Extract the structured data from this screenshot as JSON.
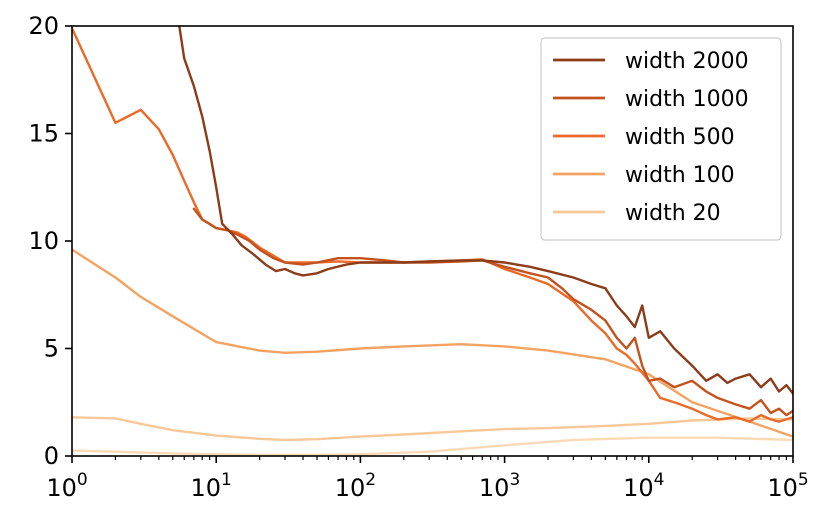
{
  "chart_data": {
    "type": "line",
    "xscale": "log",
    "xlim": [
      1,
      100000
    ],
    "ylim": [
      0,
      20
    ],
    "xticks": [
      {
        "value": 1,
        "base": "10",
        "exp": "0"
      },
      {
        "value": 10,
        "base": "10",
        "exp": "1"
      },
      {
        "value": 100,
        "base": "10",
        "exp": "2"
      },
      {
        "value": 1000,
        "base": "10",
        "exp": "3"
      },
      {
        "value": 10000,
        "base": "10",
        "exp": "4"
      },
      {
        "value": 100000,
        "base": "10",
        "exp": "5"
      }
    ],
    "yticks": [
      {
        "value": 0,
        "label": "0"
      },
      {
        "value": 5,
        "label": "5"
      },
      {
        "value": 10,
        "label": "10"
      },
      {
        "value": 15,
        "label": "15"
      },
      {
        "value": 20,
        "label": "20"
      }
    ],
    "grid": false,
    "legend_position": "top-right",
    "series": [
      {
        "name": "width 2000",
        "color": "#8c3c18",
        "x": [
          5,
          6,
          7,
          8,
          9,
          10,
          11,
          13,
          15,
          18,
          22,
          26,
          30,
          35,
          40,
          50,
          60,
          80,
          100,
          150,
          200,
          300,
          500,
          700,
          1000,
          1500,
          2000,
          3000,
          4000,
          5000,
          6000,
          7000,
          8000,
          9000,
          10000,
          12000,
          15000,
          20000,
          25000,
          30000,
          35000,
          40000,
          50000,
          60000,
          70000,
          80000,
          90000,
          100000
        ],
        "y": [
          22,
          18.5,
          17.2,
          15.8,
          14.2,
          12.5,
          10.8,
          10.3,
          9.8,
          9.4,
          8.9,
          8.6,
          8.7,
          8.5,
          8.4,
          8.5,
          8.7,
          8.9,
          9.0,
          9.0,
          9.0,
          9.05,
          9.1,
          9.1,
          9.0,
          8.8,
          8.6,
          8.3,
          8.0,
          7.8,
          7.0,
          6.5,
          6.0,
          7.0,
          5.5,
          5.8,
          5.0,
          4.2,
          3.5,
          3.8,
          3.4,
          3.6,
          3.8,
          3.2,
          3.6,
          3.0,
          3.3,
          2.9
        ]
      },
      {
        "name": "width 1000",
        "color": "#c4521d",
        "x": [
          7,
          8,
          10,
          12,
          14,
          17,
          20,
          25,
          30,
          40,
          50,
          70,
          100,
          150,
          200,
          300,
          500,
          700,
          1000,
          1500,
          2000,
          2500,
          3000,
          4000,
          5000,
          6000,
          7000,
          8000,
          9000,
          10000,
          12000,
          15000,
          20000,
          25000,
          30000,
          40000,
          50000,
          60000,
          70000,
          80000,
          90000,
          100000
        ],
        "y": [
          11.5,
          11.0,
          10.6,
          10.5,
          10.3,
          10.0,
          9.6,
          9.2,
          9.0,
          8.9,
          9.0,
          9.2,
          9.2,
          9.1,
          9.0,
          9.0,
          9.05,
          9.1,
          8.8,
          8.5,
          8.3,
          7.8,
          7.3,
          6.8,
          6.3,
          5.5,
          5.0,
          5.5,
          4.2,
          3.5,
          3.6,
          3.2,
          3.5,
          3.0,
          2.7,
          2.4,
          2.2,
          2.6,
          2.0,
          2.2,
          1.9,
          2.1
        ]
      },
      {
        "name": "width 500",
        "color": "#eb6a28",
        "x": [
          1,
          2,
          3,
          4,
          5,
          6,
          7,
          8,
          9,
          10,
          12,
          14,
          16,
          20,
          30,
          50,
          70,
          100,
          200,
          300,
          500,
          700,
          1000,
          1500,
          2000,
          3000,
          4000,
          5000,
          6000,
          7000,
          8000,
          10000,
          12000,
          15000,
          20000,
          25000,
          30000,
          40000,
          50000,
          60000,
          70000,
          80000,
          100000
        ],
        "y": [
          19.9,
          15.5,
          16.1,
          15.2,
          14.0,
          12.8,
          11.8,
          11.0,
          10.8,
          10.6,
          10.5,
          10.4,
          10.2,
          9.7,
          9.0,
          9.0,
          9.05,
          9.0,
          9.0,
          9.05,
          9.1,
          9.15,
          8.7,
          8.3,
          8.0,
          7.2,
          6.3,
          5.7,
          5.0,
          4.7,
          4.3,
          3.5,
          2.7,
          2.5,
          2.2,
          1.9,
          1.7,
          1.8,
          1.6,
          1.9,
          1.7,
          1.6,
          1.8
        ]
      },
      {
        "name": "width 100",
        "color": "#f4a261",
        "x": [
          1,
          2,
          3,
          5,
          10,
          20,
          30,
          50,
          100,
          200,
          500,
          1000,
          2000,
          5000,
          10000,
          20000,
          50000,
          100000
        ],
        "y": [
          9.6,
          8.3,
          7.4,
          6.5,
          5.3,
          4.9,
          4.8,
          4.85,
          5.0,
          5.1,
          5.2,
          5.1,
          4.9,
          4.5,
          3.8,
          2.5,
          1.6,
          0.9
        ]
      },
      {
        "name": "width 20",
        "color": "#f8c898",
        "x": [
          1,
          2,
          3,
          5,
          10,
          20,
          30,
          50,
          100,
          200,
          500,
          1000,
          2000,
          5000,
          10000,
          20000,
          50000,
          100000
        ],
        "y": [
          1.8,
          1.75,
          1.5,
          1.2,
          0.95,
          0.8,
          0.75,
          0.78,
          0.9,
          1.0,
          1.15,
          1.25,
          1.3,
          1.4,
          1.5,
          1.65,
          1.75,
          1.7
        ]
      },
      {
        "name": "",
        "color": "#fbdab5",
        "x": [
          1,
          2,
          5,
          10,
          20,
          50,
          100,
          300,
          1000,
          3000,
          10000,
          30000,
          100000
        ],
        "y": [
          0.25,
          0.2,
          0.12,
          0.08,
          0.05,
          0.05,
          0.08,
          0.2,
          0.5,
          0.75,
          0.85,
          0.85,
          0.75
        ]
      }
    ]
  }
}
